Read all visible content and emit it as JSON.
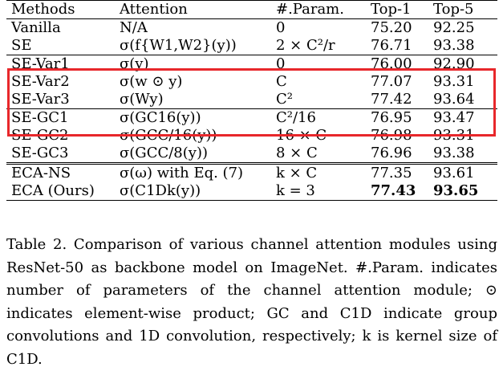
{
  "table": {
    "headers": [
      "Methods",
      "Attention",
      "#.Param.",
      "Top-1",
      "Top-5"
    ],
    "rows": [
      {
        "method": "Vanilla",
        "attention": "N/A",
        "params": "0",
        "top1": "75.20",
        "top5": "92.25"
      },
      {
        "method": "SE",
        "attention": "σ(f{W1,W2}(y))",
        "params": "2 × C²/r",
        "top1": "76.71",
        "top5": "93.38"
      },
      {
        "method": "SE-Var1",
        "attention": "σ(y)",
        "params": "0",
        "top1": "76.00",
        "top5": "92.90"
      },
      {
        "method": "SE-Var2",
        "attention": "σ(w ⊙ y)",
        "params": "C",
        "top1": "77.07",
        "top5": "93.31"
      },
      {
        "method": "SE-Var3",
        "attention": "σ(Wy)",
        "params": "C²",
        "top1": "77.42",
        "top5": "93.64"
      },
      {
        "method": "SE-GC1",
        "attention": "σ(GC16(y))",
        "params": "C²/16",
        "top1": "76.95",
        "top5": "93.47"
      },
      {
        "method": "SE-GC2",
        "attention": "σ(GCC/16(y))",
        "params": "16 × C",
        "top1": "76.98",
        "top5": "93.31"
      },
      {
        "method": "SE-GC3",
        "attention": "σ(GCC/8(y))",
        "params": "8 × C",
        "top1": "76.96",
        "top5": "93.38"
      },
      {
        "method": "ECA-NS",
        "attention": "σ(ω) with Eq. (7)",
        "params": "k × C",
        "top1": "77.35",
        "top5": "93.61"
      },
      {
        "method": "ECA (Ours)",
        "attention": "σ(C1Dk(y))",
        "params": "k = 3",
        "top1": "77.43",
        "top5": "93.65"
      }
    ]
  },
  "caption": "Table 2. Comparison of various channel attention modules using ResNet-50 as backbone model on ImageNet. #.Param. indicates number of parameters of the channel attention module; ⊙ indicates element-wise product; GC and C1D indicate group convolutions and 1D convolution, respectively; k is kernel size of C1D.",
  "highlight_color": "#e8272b"
}
